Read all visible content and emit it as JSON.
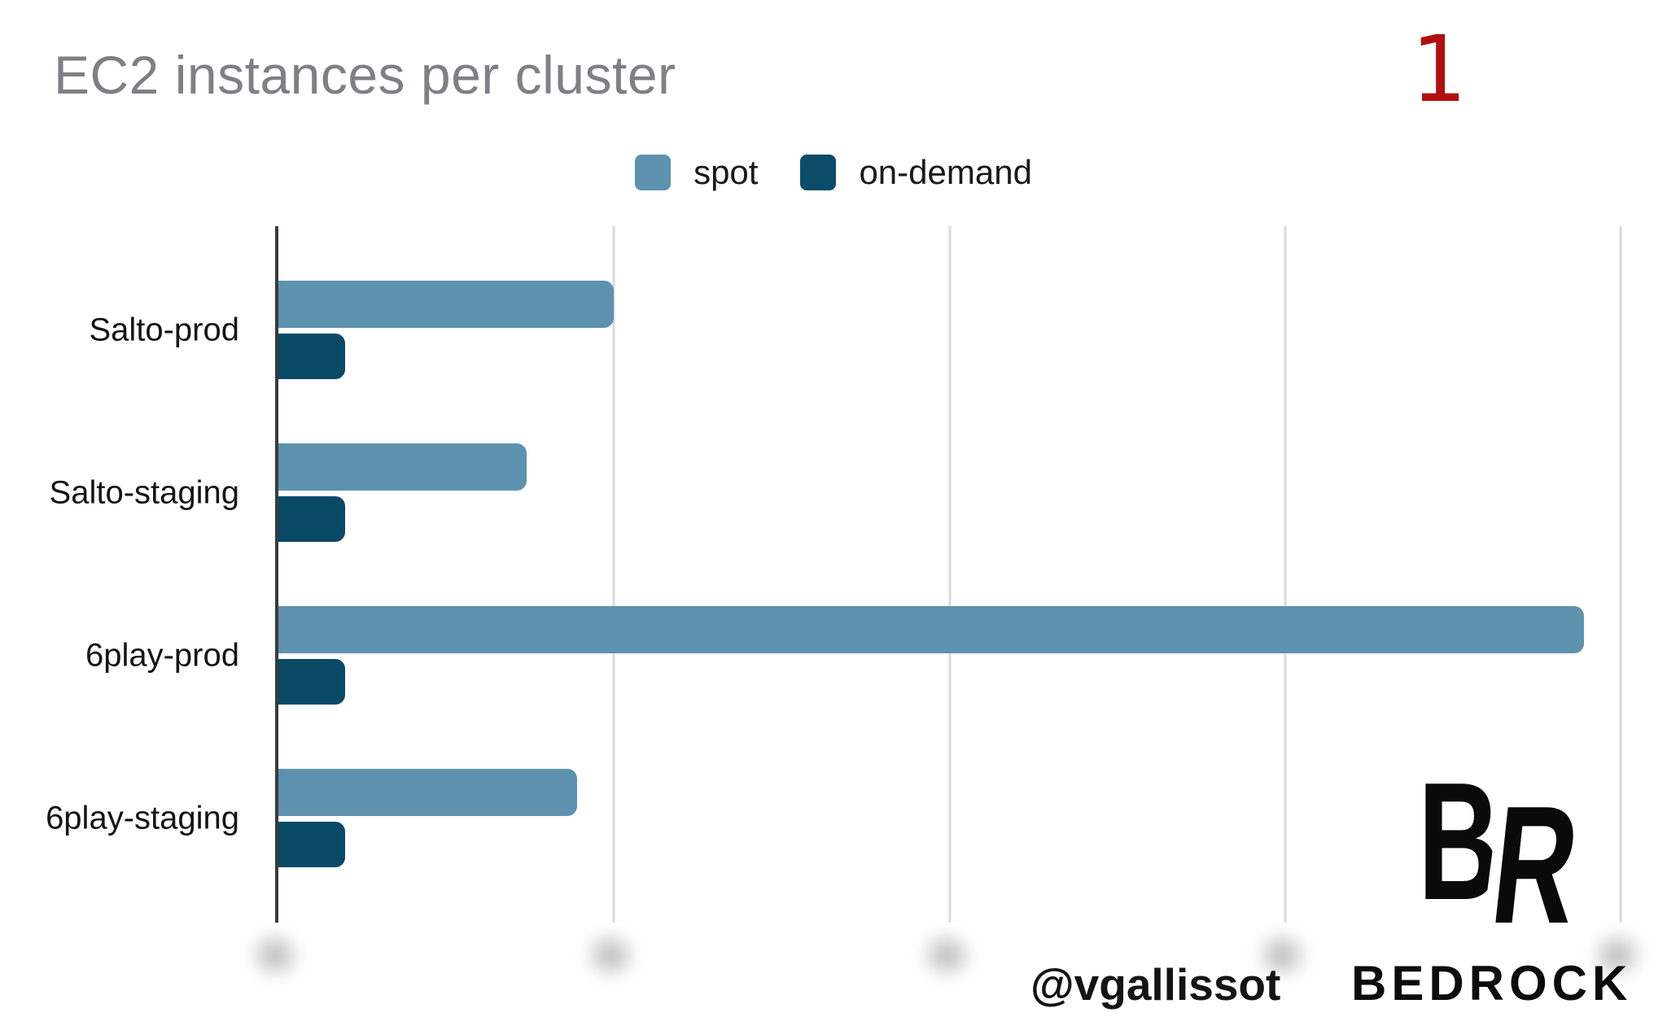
{
  "slide": {
    "title": "EC2 instances per cluster",
    "page_number": "1",
    "page_number_color": "#b20f11",
    "watermark_handle": "@vgallissot",
    "brand_name": "BEDROCK",
    "brand_monogram_left": "B",
    "brand_monogram_right": "R"
  },
  "legend": [
    {
      "label": "spot",
      "color": "#5d92af"
    },
    {
      "label": "on-demand",
      "color": "#0b4c68"
    }
  ],
  "chart_data": {
    "type": "bar",
    "orientation": "horizontal",
    "title": "EC2 instances per cluster",
    "categories": [
      "Salto-prod",
      "Salto-staging",
      "6play-prod",
      "6play-staging"
    ],
    "series": [
      {
        "name": "spot",
        "color": "#5d92af",
        "values": [
          100,
          74,
          389,
          89
        ]
      },
      {
        "name": "on-demand",
        "color": "#084a66",
        "values": [
          20,
          20,
          20,
          20
        ]
      }
    ],
    "x_axis": {
      "min": 0,
      "max": 408,
      "gridline_values": [
        100,
        200,
        300,
        400
      ],
      "tick_labels": "blurred / redacted in source image",
      "units": "relative units (tick numbers unreadable)"
    },
    "y_axis": {
      "label": ""
    },
    "legend_position": "top-center",
    "grid": "vertical gridlines only",
    "colors": {
      "gridline": "#d9d9d9",
      "axis": "#3b3b3b"
    }
  }
}
